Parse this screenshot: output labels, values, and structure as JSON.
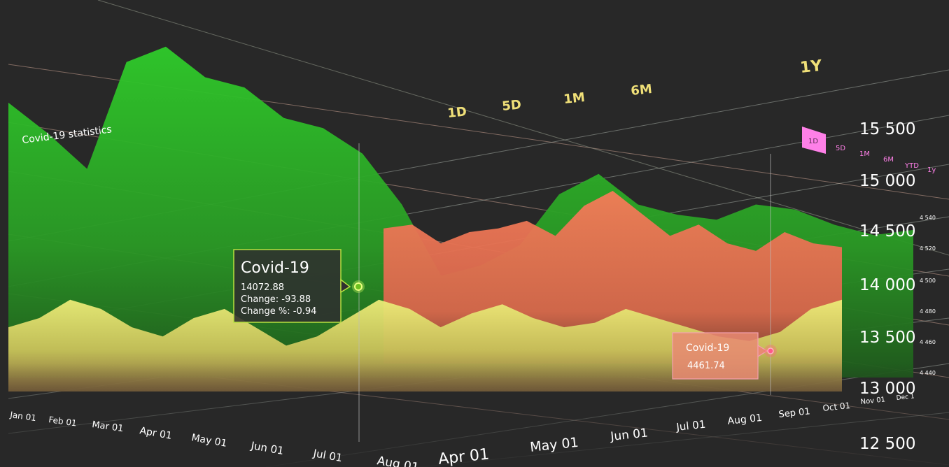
{
  "chart_data": {
    "type": "area",
    "title": "Covid-19 statistics",
    "range_buttons_main": [
      "1D",
      "5D",
      "1M",
      "6M",
      "1Y"
    ],
    "range_buttons_small": [
      "1D",
      "5D",
      "1M",
      "6M",
      "YTD",
      "1y"
    ],
    "active_small_button": "1D",
    "y_ticks_main": [
      "15 500",
      "15 000",
      "14 500",
      "14 000",
      "13 500",
      "13 000",
      "12 500"
    ],
    "y_ticks_small": [
      "4 540",
      "4 520",
      "4 500",
      "4 480",
      "4 460",
      "4 440"
    ],
    "x_ticks_front": [
      "Jan 01",
      "Feb 01",
      "Mar 01",
      "Apr 01",
      "May 01",
      "Jun 01",
      "Jul 01",
      "Aug 01"
    ],
    "x_ticks_back": [
      "Apr 01",
      "May 01",
      "Jun 01",
      "Jul 01",
      "Aug 01",
      "Sep 01",
      "Oct 01",
      "Nov 01",
      "Dec 1"
    ],
    "series": [
      {
        "color": "#2ec82e",
        "values": [
          15200,
          14900,
          14550,
          15600,
          15750,
          15450,
          15350,
          15050,
          14950,
          14700,
          14200,
          13500,
          13600,
          13800,
          14300,
          14500,
          14200,
          14100,
          14050,
          14200,
          14150,
          14000,
          13900,
          13950
        ]
      },
      {
        "color": "#f08060",
        "values": [
          14300,
          14350,
          14100,
          14250,
          14300,
          14400,
          14200,
          14600,
          14800,
          14500,
          14200,
          14350,
          14100,
          14000,
          14250,
          14100,
          14050
        ]
      },
      {
        "color": "#e6e06e",
        "values": [
          4470,
          4480,
          4500,
          4490,
          4470,
          4460,
          4480,
          4490,
          4470,
          4450,
          4460,
          4480,
          4500,
          4490,
          4470,
          4485,
          4495,
          4480,
          4470,
          4475,
          4490,
          4480,
          4470,
          4460,
          4455,
          4465,
          4490,
          4500
        ]
      }
    ],
    "tooltips": [
      {
        "title": "Covid-19",
        "value": "14072.88",
        "change": "Change: -93.88",
        "change_pct": "Change %: -0.94"
      },
      {
        "title": "Covid-19",
        "value": "4461.74"
      }
    ]
  }
}
